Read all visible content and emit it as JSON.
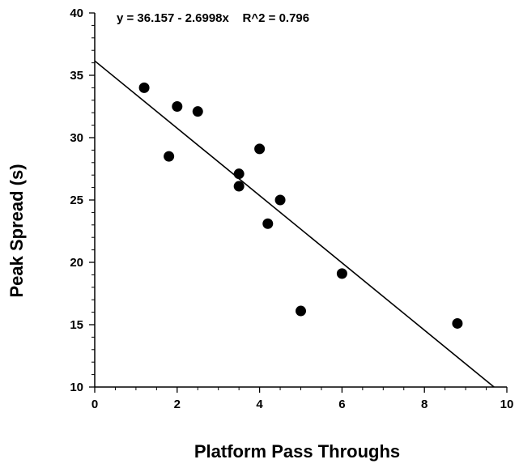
{
  "chart_data": {
    "type": "scatter",
    "title": "",
    "xlabel": "Platform Pass Throughs",
    "ylabel": "Peak Spread (s)",
    "xlim": [
      0,
      10
    ],
    "ylim": [
      10,
      40
    ],
    "x_ticks": [
      0,
      2,
      4,
      6,
      8,
      10
    ],
    "y_ticks": [
      10,
      15,
      20,
      25,
      30,
      35,
      40
    ],
    "x_tick_labels": [
      "0",
      "2",
      "4",
      "6",
      "8",
      "10"
    ],
    "y_tick_labels": [
      "10",
      "15",
      "20",
      "25",
      "30",
      "35",
      "40"
    ],
    "grid": false,
    "points": [
      {
        "x": 1.2,
        "y": 34.0
      },
      {
        "x": 2.0,
        "y": 32.5
      },
      {
        "x": 2.5,
        "y": 32.1
      },
      {
        "x": 1.8,
        "y": 28.5
      },
      {
        "x": 4.0,
        "y": 29.1
      },
      {
        "x": 3.5,
        "y": 27.1
      },
      {
        "x": 3.5,
        "y": 26.1
      },
      {
        "x": 4.5,
        "y": 25.0
      },
      {
        "x": 4.2,
        "y": 23.1
      },
      {
        "x": 6.0,
        "y": 19.1
      },
      {
        "x": 5.0,
        "y": 16.1
      },
      {
        "x": 8.8,
        "y": 15.1
      }
    ],
    "fit_line": {
      "intercept": 36.157,
      "slope": -2.6998
    },
    "annotation": "y = 36.157 - 2.6998x    R^2 = 0.796",
    "marker_color": "#000000",
    "line_color": "#000000"
  }
}
